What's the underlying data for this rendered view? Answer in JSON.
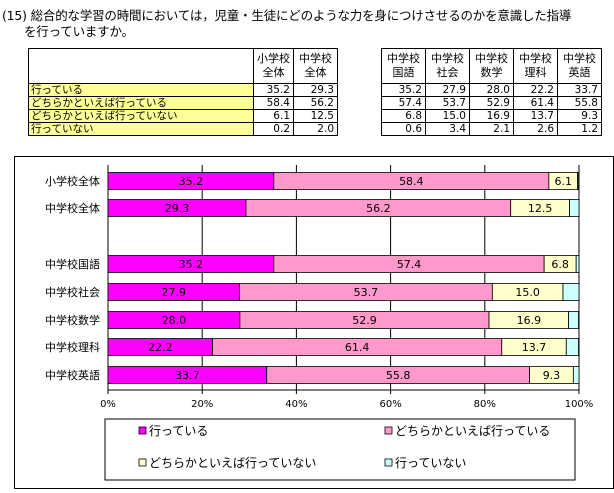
{
  "question": {
    "line1": "(15) 総合的な学習の時間においては，児童・生徒にどのような力を身につけさせるのかを意識した指導",
    "line2": "を行っていますか。"
  },
  "table": {
    "headers": [
      "小学校\n全体",
      "中学校\n全体",
      "中学校\n国語",
      "中学校\n社会",
      "中学校\n数学",
      "中学校\n理科",
      "中学校\n英語"
    ],
    "rows": [
      {
        "label": "行っている",
        "values": [
          "35.2",
          "29.3",
          "35.2",
          "27.9",
          "28.0",
          "22.2",
          "33.7"
        ]
      },
      {
        "label": "どちらかといえば行っている",
        "values": [
          "58.4",
          "56.2",
          "57.4",
          "53.7",
          "52.9",
          "61.4",
          "55.8"
        ]
      },
      {
        "label": "どちらかといえば行っていない",
        "values": [
          "6.1",
          "12.5",
          "6.8",
          "15.0",
          "16.9",
          "13.7",
          "9.3"
        ]
      },
      {
        "label": "行っていない",
        "values": [
          "0.2",
          "2.0",
          "0.6",
          "3.4",
          "2.1",
          "2.6",
          "1.2"
        ]
      }
    ]
  },
  "chart_data": {
    "type": "bar",
    "orientation": "horizontal",
    "stacked": true,
    "percent": true,
    "categories": [
      "小学校全体",
      "中学校全体",
      "中学校国語",
      "中学校社会",
      "中学校数学",
      "中学校理科",
      "中学校英語"
    ],
    "series": [
      {
        "name": "行っている",
        "color": "#ff00ff",
        "values": [
          35.2,
          29.3,
          35.2,
          27.9,
          28.0,
          22.2,
          33.7
        ],
        "labels": [
          "35.2",
          "29.3",
          "35.2",
          "27.9",
          "28.0",
          "22.2",
          "33.7"
        ]
      },
      {
        "name": "どちらかといえば行っている",
        "color": "#ff99cc",
        "values": [
          58.4,
          56.2,
          57.4,
          53.7,
          52.9,
          61.4,
          55.8
        ],
        "labels": [
          "58.4",
          "56.2",
          "57.4",
          "53.7",
          "52.9",
          "61.4",
          "55.8"
        ]
      },
      {
        "name": "どちらかといえば行っていない",
        "color": "#ffffcc",
        "values": [
          6.1,
          12.5,
          6.8,
          15.0,
          16.9,
          13.7,
          9.3
        ],
        "labels": [
          "6.1",
          "12.5",
          "6.8",
          "15.0",
          "16.9",
          "13.7",
          "9.3"
        ]
      },
      {
        "name": "行っていない",
        "color": "#ccffff",
        "values": [
          0.2,
          2.0,
          0.6,
          3.4,
          2.1,
          2.6,
          1.2
        ],
        "labels": [
          "",
          "",
          "",
          "",
          "",
          "",
          ""
        ]
      }
    ],
    "xlim": [
      0,
      100
    ],
    "xticks": [
      "0%",
      "20%",
      "40%",
      "60%",
      "80%",
      "100%"
    ],
    "legend": "bottom"
  }
}
